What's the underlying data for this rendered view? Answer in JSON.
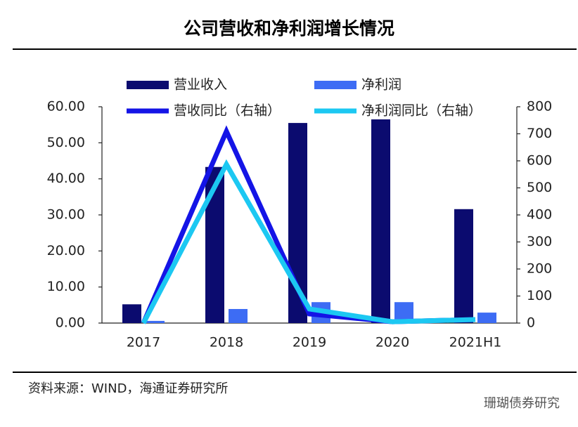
{
  "chart_data": {
    "type": "bar_line",
    "title": "公司营收和净利润增长情况",
    "source": "资料来源：WIND，海通证券研究所",
    "watermark": "珊瑚债券研究",
    "categories": [
      "2017",
      "2018",
      "2019",
      "2020",
      "2021H1"
    ],
    "series": [
      {
        "name": "营业收入",
        "type": "bar",
        "color": "#0b0b6f",
        "values": [
          5.2,
          43.3,
          55.5,
          56.5,
          31.6
        ]
      },
      {
        "name": "净利润",
        "type": "bar",
        "color": "#3d6cf4",
        "values": [
          0.6,
          3.9,
          5.8,
          5.8,
          2.9
        ]
      },
      {
        "name": "营收同比（右轴）",
        "type": "line",
        "axis": "y2",
        "color": "#1414e6",
        "values": [
          0,
          709,
          34,
          5,
          13
        ]
      },
      {
        "name": "净利润同比（右轴）",
        "type": "line",
        "axis": "y2",
        "color": "#1cc8f2",
        "values": [
          0,
          587,
          52,
          5,
          13
        ]
      }
    ],
    "ylim": [
      0,
      60
    ],
    "yticks": [
      {
        "value": 0,
        "label": "0.00"
      },
      {
        "value": 10,
        "label": "10.00"
      },
      {
        "value": 20,
        "label": "20.00"
      },
      {
        "value": 30,
        "label": "30.00"
      },
      {
        "value": 40,
        "label": "40.00"
      },
      {
        "value": 50,
        "label": "50.00"
      },
      {
        "value": 60,
        "label": "60.00"
      }
    ],
    "y2lim": [
      0,
      800
    ],
    "y2ticks": [
      0,
      100,
      200,
      300,
      400,
      500,
      600,
      700,
      800
    ]
  }
}
